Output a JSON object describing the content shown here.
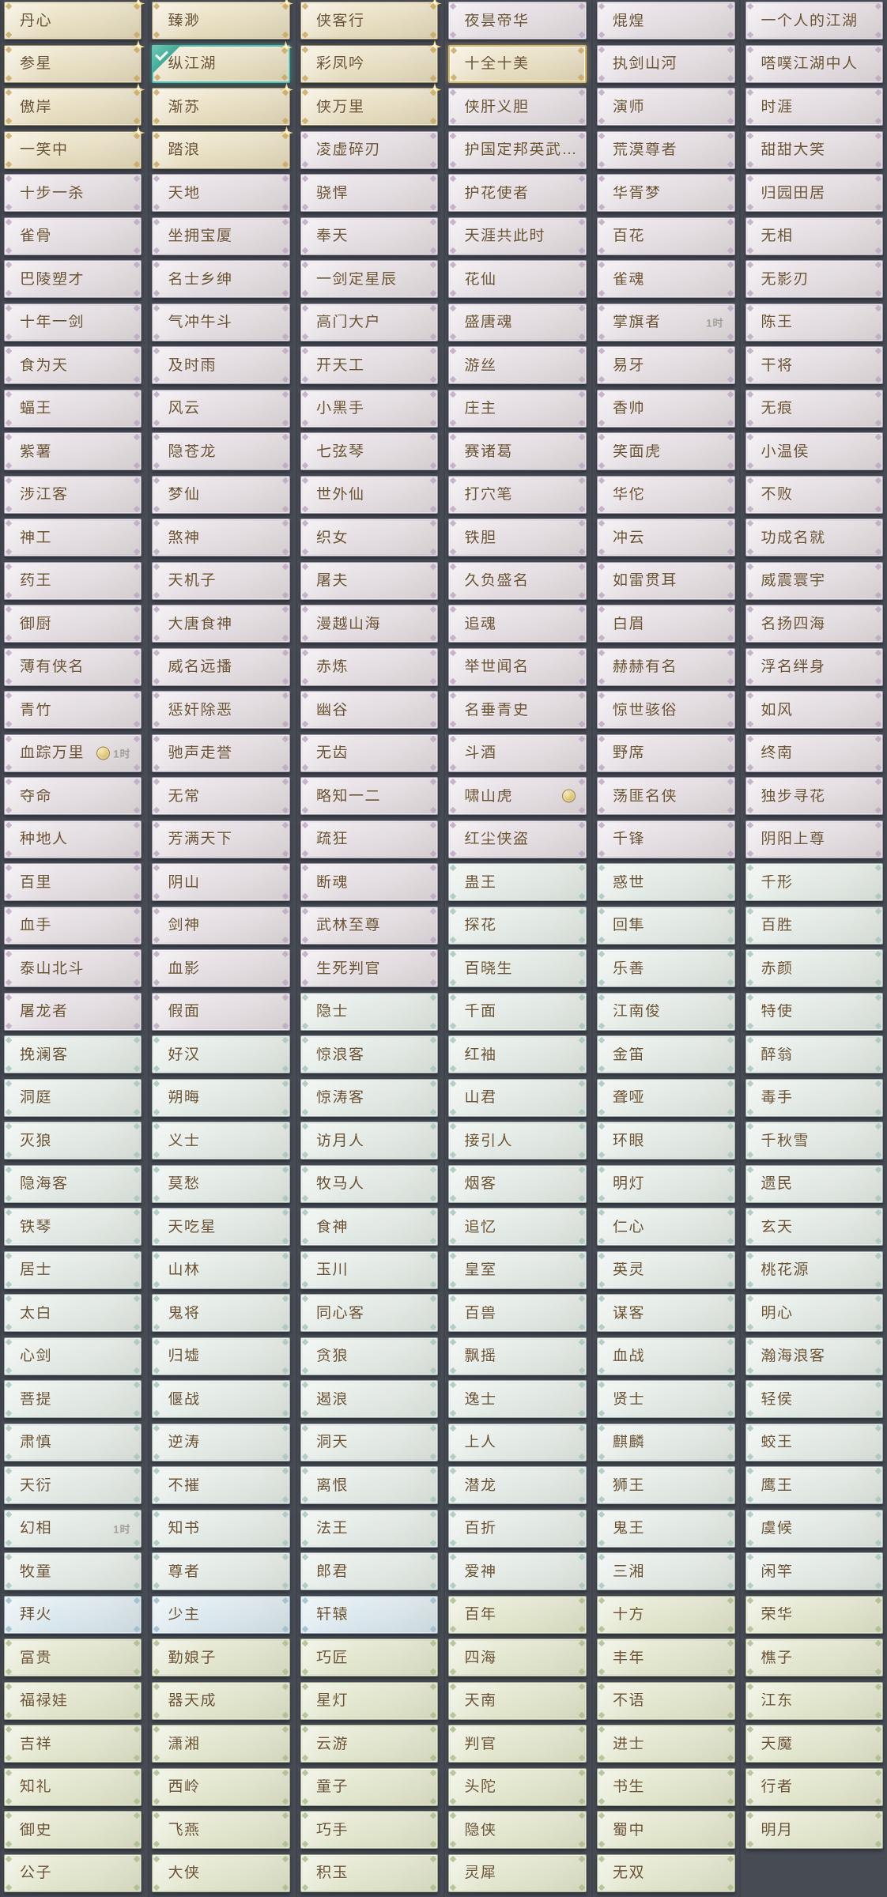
{
  "colors": {
    "page_background": "#474b54",
    "selected_accent": "#52bdaa",
    "highlight_accent": "#d8b76b",
    "label_text": "#6b5334",
    "duration_text": "#9d9d93"
  },
  "tiers": {
    "g": {
      "edge": "#9b8a5a",
      "bg1": "#f1ead4",
      "bg2": "#e3d9ba",
      "corner": "#c8a55e"
    },
    "p": {
      "edge": "#a29aab",
      "bg1": "#ece6eb",
      "bg2": "#e1dade",
      "corner": "#b9a5c2"
    },
    "t": {
      "edge": "#9aaca8",
      "bg1": "#eaf0ec",
      "bg2": "#e0e8e3",
      "corner": "#a3c4bc"
    },
    "u": {
      "edge": "#8ba5b4",
      "bg1": "#e4eef3",
      "bg2": "#d6e5ec",
      "corner": "#96bccd"
    },
    "n": {
      "edge": "#9fa983",
      "bg1": "#e9ecd8",
      "bg2": "#dfe4c9",
      "corner": "#a9ba8b"
    }
  },
  "grid": {
    "columns": 6,
    "rows": 44,
    "items": [
      {
        "l": "丹心",
        "t": "g",
        "st": 1
      },
      {
        "l": "臻渺",
        "t": "g",
        "st": 1
      },
      {
        "l": "侠客行",
        "t": "g",
        "st": 1
      },
      {
        "l": "夜昙帝华",
        "t": "p"
      },
      {
        "l": "焜煌",
        "t": "p"
      },
      {
        "l": "一个人的江湖",
        "t": "p"
      },
      {
        "l": "参星",
        "t": "g",
        "st": 1
      },
      {
        "l": "纵江湖",
        "t": "g",
        "st": 1,
        "s": 1
      },
      {
        "l": "彩凤吟",
        "t": "g",
        "st": 1
      },
      {
        "l": "十全十美",
        "t": "g",
        "h": 1
      },
      {
        "l": "执剑山河",
        "t": "p"
      },
      {
        "l": "嗒噗江湖中人",
        "t": "p"
      },
      {
        "l": "傲岸",
        "t": "g",
        "st": 1
      },
      {
        "l": "渐苏",
        "t": "g",
        "st": 1
      },
      {
        "l": "侠万里",
        "t": "g",
        "st": 1
      },
      {
        "l": "侠肝义胆",
        "t": "p"
      },
      {
        "l": "演师",
        "t": "p"
      },
      {
        "l": "时涯",
        "t": "p"
      },
      {
        "l": "一笑中",
        "t": "g",
        "st": 1
      },
      {
        "l": "踏浪",
        "t": "g",
        "st": 1
      },
      {
        "l": "凌虚碎刃",
        "t": "p"
      },
      {
        "l": "护国定邦英武…",
        "t": "p"
      },
      {
        "l": "荒漠尊者",
        "t": "p"
      },
      {
        "l": "甜甜大笑",
        "t": "p"
      },
      {
        "l": "十步一杀",
        "t": "p"
      },
      {
        "l": "天地",
        "t": "p"
      },
      {
        "l": "骁悍",
        "t": "p"
      },
      {
        "l": "护花使者",
        "t": "p"
      },
      {
        "l": "华胥梦",
        "t": "p"
      },
      {
        "l": "归园田居",
        "t": "p"
      },
      {
        "l": "雀骨",
        "t": "p"
      },
      {
        "l": "坐拥宝厦",
        "t": "p"
      },
      {
        "l": "奉天",
        "t": "p"
      },
      {
        "l": "天涯共此时",
        "t": "p"
      },
      {
        "l": "百花",
        "t": "p"
      },
      {
        "l": "无相",
        "t": "p"
      },
      {
        "l": "巴陵塑才",
        "t": "p"
      },
      {
        "l": "名士乡绅",
        "t": "p"
      },
      {
        "l": "一剑定星辰",
        "t": "p"
      },
      {
        "l": "花仙",
        "t": "p"
      },
      {
        "l": "雀魂",
        "t": "p"
      },
      {
        "l": "无影刃",
        "t": "p"
      },
      {
        "l": "十年一剑",
        "t": "p"
      },
      {
        "l": "气冲牛斗",
        "t": "p"
      },
      {
        "l": "高门大户",
        "t": "p"
      },
      {
        "l": "盛唐魂",
        "t": "p"
      },
      {
        "l": "掌旗者",
        "t": "p",
        "b": "1时"
      },
      {
        "l": "陈王",
        "t": "p"
      },
      {
        "l": "食为天",
        "t": "p"
      },
      {
        "l": "及时雨",
        "t": "p"
      },
      {
        "l": "开天工",
        "t": "p"
      },
      {
        "l": "游丝",
        "t": "p"
      },
      {
        "l": "易牙",
        "t": "p"
      },
      {
        "l": "干将",
        "t": "p"
      },
      {
        "l": "蝠王",
        "t": "p"
      },
      {
        "l": "风云",
        "t": "p"
      },
      {
        "l": "小黑手",
        "t": "p"
      },
      {
        "l": "庄主",
        "t": "p"
      },
      {
        "l": "香帅",
        "t": "p"
      },
      {
        "l": "无痕",
        "t": "p"
      },
      {
        "l": "紫薯",
        "t": "p"
      },
      {
        "l": "隐苍龙",
        "t": "p"
      },
      {
        "l": "七弦琴",
        "t": "p"
      },
      {
        "l": "赛诸葛",
        "t": "p"
      },
      {
        "l": "笑面虎",
        "t": "p"
      },
      {
        "l": "小温侯",
        "t": "p"
      },
      {
        "l": "涉江客",
        "t": "p"
      },
      {
        "l": "梦仙",
        "t": "p"
      },
      {
        "l": "世外仙",
        "t": "p"
      },
      {
        "l": "打穴笔",
        "t": "p"
      },
      {
        "l": "华佗",
        "t": "p"
      },
      {
        "l": "不败",
        "t": "p"
      },
      {
        "l": "神工",
        "t": "p"
      },
      {
        "l": "煞神",
        "t": "p"
      },
      {
        "l": "织女",
        "t": "p"
      },
      {
        "l": "铁胆",
        "t": "p"
      },
      {
        "l": "冲云",
        "t": "p"
      },
      {
        "l": "功成名就",
        "t": "p"
      },
      {
        "l": "药王",
        "t": "p"
      },
      {
        "l": "天机子",
        "t": "p"
      },
      {
        "l": "屠夫",
        "t": "p"
      },
      {
        "l": "久负盛名",
        "t": "p"
      },
      {
        "l": "如雷贯耳",
        "t": "p"
      },
      {
        "l": "威震寰宇",
        "t": "p"
      },
      {
        "l": "御厨",
        "t": "p"
      },
      {
        "l": "大唐食神",
        "t": "p"
      },
      {
        "l": "漫越山海",
        "t": "p"
      },
      {
        "l": "追魂",
        "t": "p"
      },
      {
        "l": "白眉",
        "t": "p"
      },
      {
        "l": "名扬四海",
        "t": "p"
      },
      {
        "l": "薄有侠名",
        "t": "p"
      },
      {
        "l": "威名远播",
        "t": "p"
      },
      {
        "l": "赤炼",
        "t": "p"
      },
      {
        "l": "举世闻名",
        "t": "p"
      },
      {
        "l": "赫赫有名",
        "t": "p"
      },
      {
        "l": "浮名绊身",
        "t": "p"
      },
      {
        "l": "青竹",
        "t": "p"
      },
      {
        "l": "惩奸除恶",
        "t": "p"
      },
      {
        "l": "幽谷",
        "t": "p"
      },
      {
        "l": "名垂青史",
        "t": "p"
      },
      {
        "l": "惊世骇俗",
        "t": "p"
      },
      {
        "l": "如风",
        "t": "p"
      },
      {
        "l": "血踪万里",
        "t": "p",
        "c": 1,
        "b": "1时"
      },
      {
        "l": "驰声走誉",
        "t": "p"
      },
      {
        "l": "无齿",
        "t": "p"
      },
      {
        "l": "斗酒",
        "t": "p"
      },
      {
        "l": "野席",
        "t": "p"
      },
      {
        "l": "终南",
        "t": "p"
      },
      {
        "l": "夺命",
        "t": "p"
      },
      {
        "l": "无常",
        "t": "p"
      },
      {
        "l": "略知一二",
        "t": "p"
      },
      {
        "l": "啸山虎",
        "t": "p",
        "c": 1
      },
      {
        "l": "荡匪名侠",
        "t": "p"
      },
      {
        "l": "独步寻花",
        "t": "p"
      },
      {
        "l": "种地人",
        "t": "p"
      },
      {
        "l": "芳满天下",
        "t": "p"
      },
      {
        "l": "疏狂",
        "t": "p"
      },
      {
        "l": "红尘侠盗",
        "t": "p"
      },
      {
        "l": "千锋",
        "t": "p"
      },
      {
        "l": "阴阳上尊",
        "t": "p"
      },
      {
        "l": "百里",
        "t": "p"
      },
      {
        "l": "阴山",
        "t": "p"
      },
      {
        "l": "断魂",
        "t": "p"
      },
      {
        "l": "蛊王",
        "t": "t"
      },
      {
        "l": "惑世",
        "t": "t"
      },
      {
        "l": "千形",
        "t": "t"
      },
      {
        "l": "血手",
        "t": "p"
      },
      {
        "l": "剑神",
        "t": "p"
      },
      {
        "l": "武林至尊",
        "t": "p"
      },
      {
        "l": "探花",
        "t": "t"
      },
      {
        "l": "回隼",
        "t": "t"
      },
      {
        "l": "百胜",
        "t": "t"
      },
      {
        "l": "泰山北斗",
        "t": "p"
      },
      {
        "l": "血影",
        "t": "p"
      },
      {
        "l": "生死判官",
        "t": "p"
      },
      {
        "l": "百晓生",
        "t": "t"
      },
      {
        "l": "乐善",
        "t": "t"
      },
      {
        "l": "赤颜",
        "t": "t"
      },
      {
        "l": "屠龙者",
        "t": "p"
      },
      {
        "l": "假面",
        "t": "p"
      },
      {
        "l": "隐士",
        "t": "t"
      },
      {
        "l": "千面",
        "t": "t"
      },
      {
        "l": "江南俊",
        "t": "t"
      },
      {
        "l": "特使",
        "t": "t"
      },
      {
        "l": "挽澜客",
        "t": "t"
      },
      {
        "l": "好汉",
        "t": "t"
      },
      {
        "l": "惊浪客",
        "t": "t"
      },
      {
        "l": "红袖",
        "t": "t"
      },
      {
        "l": "金笛",
        "t": "t"
      },
      {
        "l": "醉翁",
        "t": "t"
      },
      {
        "l": "洞庭",
        "t": "t"
      },
      {
        "l": "朔晦",
        "t": "t"
      },
      {
        "l": "惊涛客",
        "t": "t"
      },
      {
        "l": "山君",
        "t": "t"
      },
      {
        "l": "聋哑",
        "t": "t"
      },
      {
        "l": "毒手",
        "t": "t"
      },
      {
        "l": "灭狼",
        "t": "t"
      },
      {
        "l": "义士",
        "t": "t"
      },
      {
        "l": "访月人",
        "t": "t"
      },
      {
        "l": "接引人",
        "t": "t"
      },
      {
        "l": "环眼",
        "t": "t"
      },
      {
        "l": "千秋雪",
        "t": "t"
      },
      {
        "l": "隐海客",
        "t": "t"
      },
      {
        "l": "莫愁",
        "t": "t"
      },
      {
        "l": "牧马人",
        "t": "t"
      },
      {
        "l": "烟客",
        "t": "t"
      },
      {
        "l": "明灯",
        "t": "t"
      },
      {
        "l": "遗民",
        "t": "t"
      },
      {
        "l": "铁琴",
        "t": "t"
      },
      {
        "l": "天吃星",
        "t": "t"
      },
      {
        "l": "食神",
        "t": "t"
      },
      {
        "l": "追忆",
        "t": "t"
      },
      {
        "l": "仁心",
        "t": "t"
      },
      {
        "l": "玄天",
        "t": "t"
      },
      {
        "l": "居士",
        "t": "t"
      },
      {
        "l": "山林",
        "t": "t"
      },
      {
        "l": "玉川",
        "t": "t"
      },
      {
        "l": "皇室",
        "t": "t"
      },
      {
        "l": "英灵",
        "t": "t"
      },
      {
        "l": "桃花源",
        "t": "t"
      },
      {
        "l": "太白",
        "t": "t"
      },
      {
        "l": "鬼将",
        "t": "t"
      },
      {
        "l": "同心客",
        "t": "t"
      },
      {
        "l": "百兽",
        "t": "t"
      },
      {
        "l": "谋客",
        "t": "t"
      },
      {
        "l": "明心",
        "t": "t"
      },
      {
        "l": "心剑",
        "t": "t"
      },
      {
        "l": "归墟",
        "t": "t"
      },
      {
        "l": "贪狼",
        "t": "t"
      },
      {
        "l": "飘摇",
        "t": "t"
      },
      {
        "l": "血战",
        "t": "t"
      },
      {
        "l": "瀚海浪客",
        "t": "t"
      },
      {
        "l": "菩提",
        "t": "t"
      },
      {
        "l": "偃战",
        "t": "t"
      },
      {
        "l": "遏浪",
        "t": "t"
      },
      {
        "l": "逸士",
        "t": "t"
      },
      {
        "l": "贤士",
        "t": "t"
      },
      {
        "l": "轻侯",
        "t": "t"
      },
      {
        "l": "肃慎",
        "t": "t"
      },
      {
        "l": "逆涛",
        "t": "t"
      },
      {
        "l": "洞天",
        "t": "t"
      },
      {
        "l": "上人",
        "t": "t"
      },
      {
        "l": "麒麟",
        "t": "t"
      },
      {
        "l": "蛟王",
        "t": "t"
      },
      {
        "l": "天衍",
        "t": "t"
      },
      {
        "l": "不摧",
        "t": "t"
      },
      {
        "l": "离恨",
        "t": "t"
      },
      {
        "l": "潜龙",
        "t": "t"
      },
      {
        "l": "狮王",
        "t": "t"
      },
      {
        "l": "鹰王",
        "t": "t"
      },
      {
        "l": "幻相",
        "t": "t",
        "b": "1时"
      },
      {
        "l": "知书",
        "t": "t"
      },
      {
        "l": "法王",
        "t": "t"
      },
      {
        "l": "百折",
        "t": "t"
      },
      {
        "l": "鬼王",
        "t": "t"
      },
      {
        "l": "虞候",
        "t": "t"
      },
      {
        "l": "牧童",
        "t": "t"
      },
      {
        "l": "尊者",
        "t": "t"
      },
      {
        "l": "郎君",
        "t": "t"
      },
      {
        "l": "爱神",
        "t": "t"
      },
      {
        "l": "三湘",
        "t": "t"
      },
      {
        "l": "闲竿",
        "t": "t"
      },
      {
        "l": "拜火",
        "t": "u"
      },
      {
        "l": "少主",
        "t": "u"
      },
      {
        "l": "轩辕",
        "t": "u"
      },
      {
        "l": "百年",
        "t": "n"
      },
      {
        "l": "十方",
        "t": "n"
      },
      {
        "l": "荣华",
        "t": "n"
      },
      {
        "l": "富贵",
        "t": "n"
      },
      {
        "l": "勤娘子",
        "t": "n"
      },
      {
        "l": "巧匠",
        "t": "n"
      },
      {
        "l": "四海",
        "t": "n"
      },
      {
        "l": "丰年",
        "t": "n"
      },
      {
        "l": "樵子",
        "t": "n"
      },
      {
        "l": "福禄娃",
        "t": "n"
      },
      {
        "l": "器天成",
        "t": "n"
      },
      {
        "l": "星灯",
        "t": "n"
      },
      {
        "l": "天南",
        "t": "n"
      },
      {
        "l": "不语",
        "t": "n"
      },
      {
        "l": "江东",
        "t": "n"
      },
      {
        "l": "吉祥",
        "t": "n"
      },
      {
        "l": "潇湘",
        "t": "n"
      },
      {
        "l": "云游",
        "t": "n"
      },
      {
        "l": "判官",
        "t": "n"
      },
      {
        "l": "进士",
        "t": "n"
      },
      {
        "l": "天魔",
        "t": "n"
      },
      {
        "l": "知礼",
        "t": "n"
      },
      {
        "l": "西岭",
        "t": "n"
      },
      {
        "l": "童子",
        "t": "n"
      },
      {
        "l": "头陀",
        "t": "n"
      },
      {
        "l": "书生",
        "t": "n"
      },
      {
        "l": "行者",
        "t": "n"
      },
      {
        "l": "御史",
        "t": "n"
      },
      {
        "l": "飞燕",
        "t": "n"
      },
      {
        "l": "巧手",
        "t": "n"
      },
      {
        "l": "隐侠",
        "t": "n"
      },
      {
        "l": "蜀中",
        "t": "n"
      },
      {
        "l": "明月",
        "t": "n"
      },
      {
        "l": "公子",
        "t": "n"
      },
      {
        "l": "大侠",
        "t": "n"
      },
      {
        "l": "积玉",
        "t": "n"
      },
      {
        "l": "灵犀",
        "t": "n"
      },
      {
        "l": "无双",
        "t": "n"
      },
      {
        "t": "e"
      }
    ]
  }
}
